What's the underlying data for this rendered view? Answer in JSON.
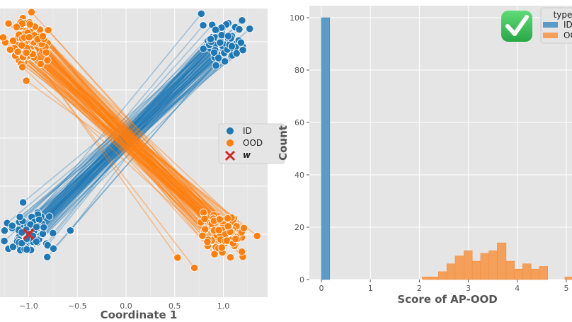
{
  "chart_data": [
    {
      "type": "scatter",
      "xlabel": "Coordinate 1",
      "ylabel": "",
      "x_ticks": [
        "−1.0",
        "−0.5",
        "0.0",
        "0.5",
        "1.0"
      ],
      "x_tick_values": [
        -1.0,
        -0.5,
        0.0,
        0.5,
        1.0
      ],
      "xlim": [
        -1.3,
        1.45
      ],
      "grid": true,
      "legend_position": "right",
      "legend": [
        {
          "label": "ID",
          "marker": "circle",
          "color": "#1f77b4"
        },
        {
          "label": "OOD",
          "marker": "circle",
          "color": "#ff7f0e"
        },
        {
          "label": "w",
          "marker": "x",
          "color": "#d62728"
        }
      ],
      "series": [
        {
          "name": "ID",
          "clusters": [
            {
              "x": -1.0,
              "y": -1.0
            },
            {
              "x": 1.0,
              "y": 1.0
            }
          ],
          "points_per_cluster": 100,
          "paired_lines": true
        },
        {
          "name": "OOD",
          "clusters": [
            {
              "x": -1.0,
              "y": 1.0
            },
            {
              "x": 1.0,
              "y": -1.0
            }
          ],
          "points_per_cluster": 100,
          "paired_lines": true
        },
        {
          "name": "w",
          "points": [
            {
              "x": -1.0,
              "y": -1.0
            }
          ]
        }
      ]
    },
    {
      "type": "bar",
      "subtype": "histogram",
      "xlabel": "Score of AP-OOD",
      "ylabel": "Count",
      "x_ticks": [
        "0",
        "1",
        "2",
        "3",
        "4",
        "5"
      ],
      "y_ticks": [
        "0",
        "20",
        "40",
        "60",
        "80",
        "100"
      ],
      "ylim": [
        0,
        104
      ],
      "grid": true,
      "legend_title": "type",
      "legend_position": "top-right",
      "legend": [
        {
          "label": "ID",
          "color": "#5b9bc8"
        },
        {
          "label": "OOD",
          "color": "#f5a05a"
        }
      ],
      "series": [
        {
          "name": "ID",
          "bins": [
            {
              "start": 0.0,
              "end": 0.17,
              "count": 100
            }
          ]
        },
        {
          "name": "OOD",
          "bins": [
            {
              "start": 2.06,
              "end": 2.23,
              "count": 1
            },
            {
              "start": 2.23,
              "end": 2.39,
              "count": 1
            },
            {
              "start": 2.39,
              "end": 2.56,
              "count": 3
            },
            {
              "start": 2.56,
              "end": 2.73,
              "count": 6
            },
            {
              "start": 2.73,
              "end": 2.91,
              "count": 9
            },
            {
              "start": 2.91,
              "end": 3.08,
              "count": 11
            },
            {
              "start": 3.08,
              "end": 3.25,
              "count": 7
            },
            {
              "start": 3.25,
              "end": 3.42,
              "count": 10
            },
            {
              "start": 3.42,
              "end": 3.59,
              "count": 11
            },
            {
              "start": 3.59,
              "end": 3.77,
              "count": 14
            },
            {
              "start": 3.77,
              "end": 3.94,
              "count": 7
            },
            {
              "start": 3.94,
              "end": 4.11,
              "count": 4
            },
            {
              "start": 4.11,
              "end": 4.28,
              "count": 6
            },
            {
              "start": 4.28,
              "end": 4.45,
              "count": 4
            },
            {
              "start": 4.45,
              "end": 4.62,
              "count": 5
            },
            {
              "start": 4.97,
              "end": 5.14,
              "count": 1
            }
          ]
        }
      ]
    }
  ],
  "badge": {
    "icon": "checkmark-icon",
    "color": "#34c759"
  }
}
